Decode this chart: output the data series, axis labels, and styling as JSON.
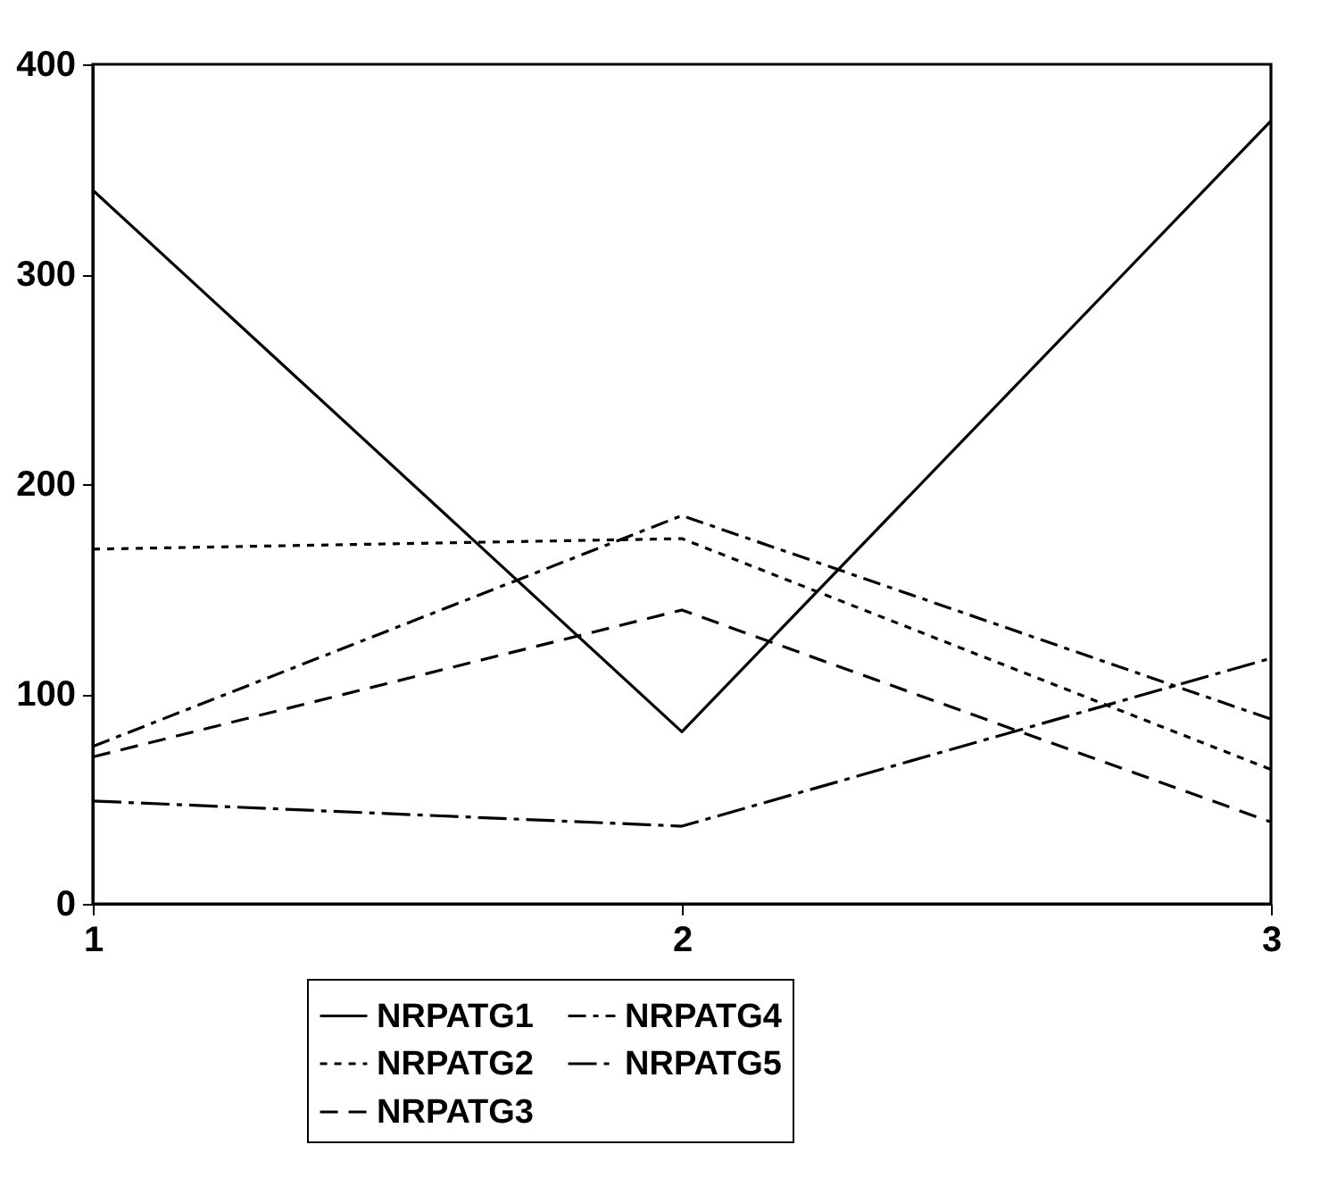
{
  "chart_data": {
    "type": "line",
    "x": [
      1,
      2,
      3
    ],
    "xlim": [
      1,
      3
    ],
    "xticks": [
      1,
      2,
      3
    ],
    "ylim": [
      0,
      400
    ],
    "yticks": [
      0,
      100,
      200,
      300,
      400
    ],
    "grid": false,
    "legend": "bottom",
    "series": [
      {
        "name": "NRPATG1",
        "color": "#000000",
        "line_style": "solid",
        "values": [
          340,
          82,
          373
        ]
      },
      {
        "name": "NRPATG2",
        "color": "#000000",
        "line_style": "dotted",
        "values": [
          169,
          174,
          64
        ]
      },
      {
        "name": "NRPATG3",
        "color": "#000000",
        "line_style": "dashed",
        "values": [
          70,
          140,
          39
        ]
      },
      {
        "name": "NRPATG4",
        "color": "#000000",
        "line_style": "dashdot",
        "values": [
          75,
          185,
          88
        ]
      },
      {
        "name": "NRPATG5",
        "color": "#000000",
        "line_style": "longdashdot",
        "values": [
          49,
          37,
          117
        ]
      }
    ]
  }
}
